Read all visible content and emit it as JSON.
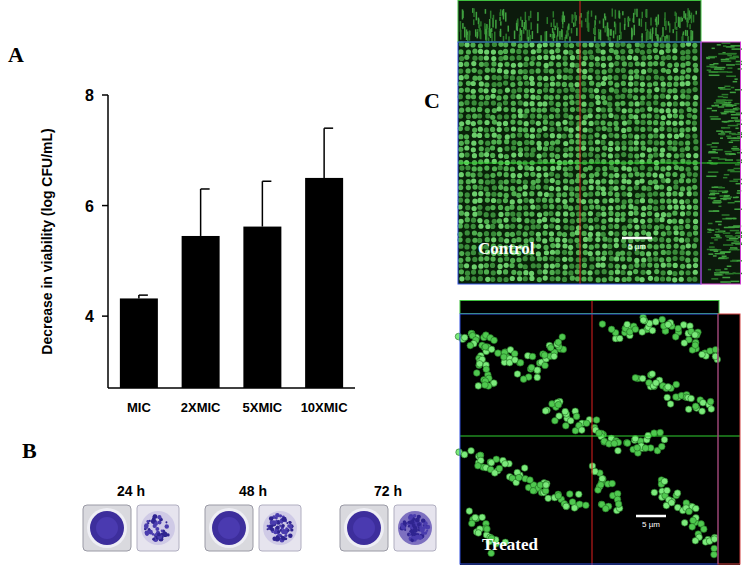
{
  "chart_data": {
    "type": "bar",
    "y_label": "Decrease in viability (log CFU/mL)",
    "categories": [
      "MIC",
      "2XMIC",
      "5XMIC",
      "10XMIC"
    ],
    "values": [
      4.32,
      5.45,
      5.62,
      6.5
    ],
    "errors": [
      0.06,
      0.85,
      0.82,
      0.9
    ],
    "color": "#000000",
    "ylim": [
      2.7,
      8
    ],
    "yticks": [
      4,
      6,
      8
    ],
    "grid": false
  },
  "panel_labels": [
    "A",
    "B",
    "C"
  ],
  "biofilm_times": [
    "24 h",
    "48 h",
    "72 h"
  ],
  "confocal": {
    "labels": [
      "Control",
      "Treated"
    ],
    "scale_bar": "5 µm"
  }
}
